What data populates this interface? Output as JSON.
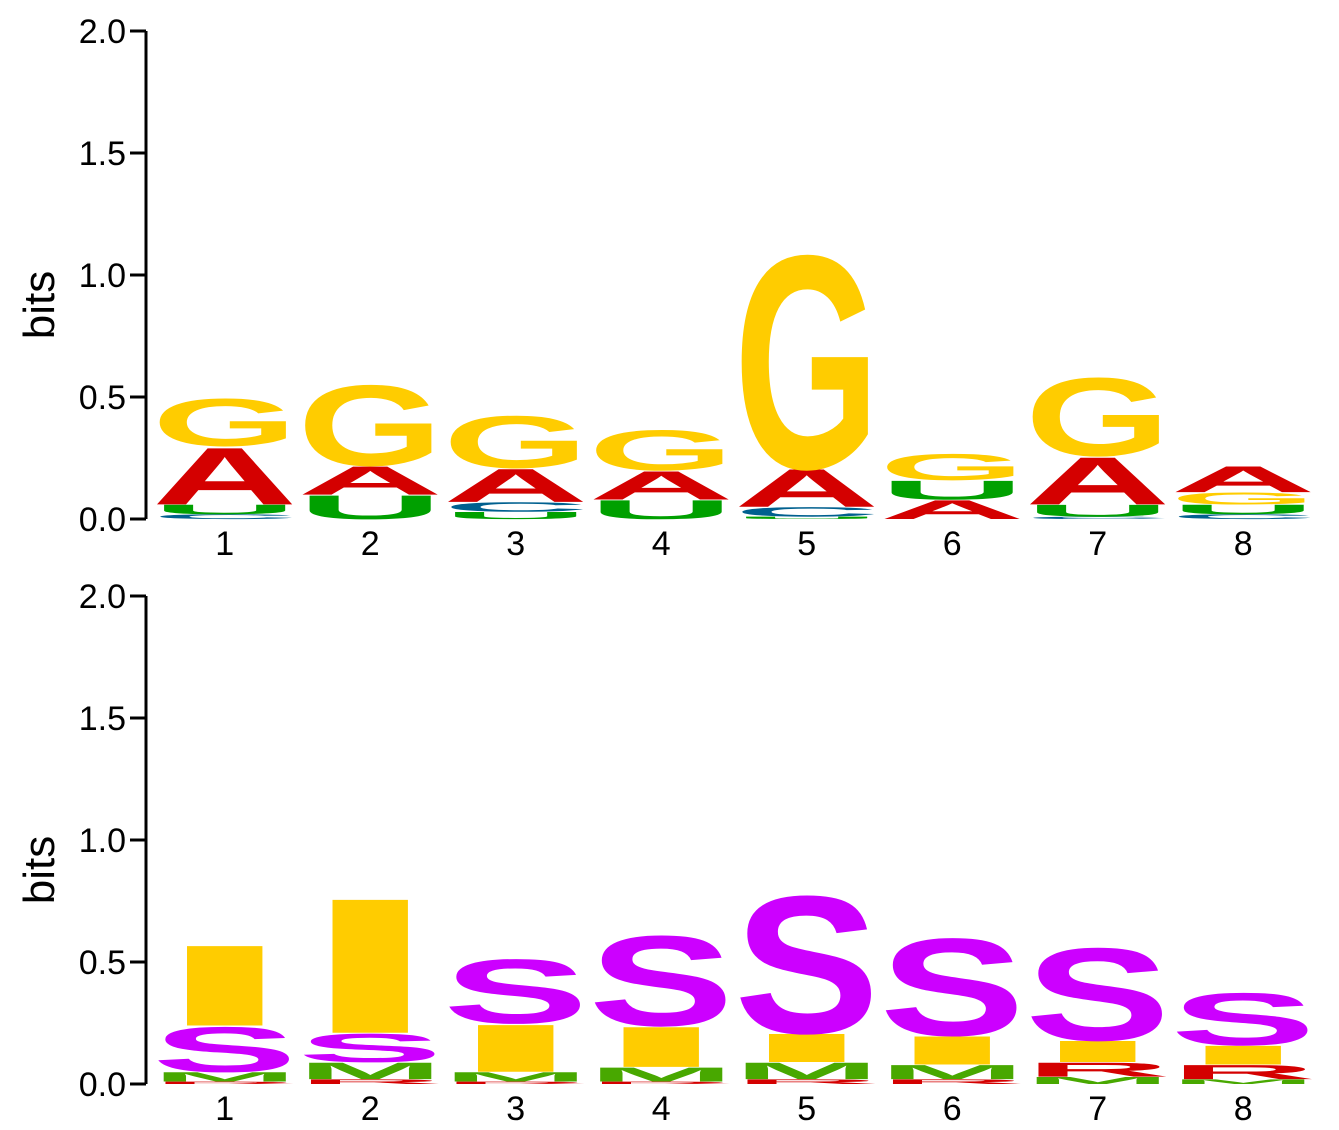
{
  "colors": {
    "A": "#d40000",
    "G": "#ffcc00",
    "U": "#00a000",
    "C": "#00608f",
    "S": "#cc00ff",
    "I": "#ffcc00",
    "M": "#48a800",
    "R": "#d40000"
  },
  "chart_data": [
    {
      "type": "sequence-logo",
      "ylabel": "bits",
      "ylim": [
        0,
        2.0
      ],
      "yticks": [
        "0.0",
        "0.5",
        "1.0",
        "1.5",
        "2.0"
      ],
      "positions": [
        "1",
        "2",
        "3",
        "4",
        "5",
        "6",
        "7",
        "8"
      ],
      "stacks": [
        [
          {
            "l": "C",
            "v": 0.02
          },
          {
            "l": "U",
            "v": 0.04
          },
          {
            "l": "A",
            "v": 0.24
          },
          {
            "l": "G",
            "v": 0.2
          }
        ],
        [
          {
            "l": "U",
            "v": 0.1
          },
          {
            "l": "A",
            "v": 0.12
          },
          {
            "l": "G",
            "v": 0.34
          }
        ],
        [
          {
            "l": "U",
            "v": 0.03
          },
          {
            "l": "C",
            "v": 0.04
          },
          {
            "l": "A",
            "v": 0.14
          },
          {
            "l": "G",
            "v": 0.22
          }
        ],
        [
          {
            "l": "U",
            "v": 0.08
          },
          {
            "l": "A",
            "v": 0.12
          },
          {
            "l": "G",
            "v": 0.17
          }
        ],
        [
          {
            "l": "U",
            "v": 0.01
          },
          {
            "l": "C",
            "v": 0.04
          },
          {
            "l": "A",
            "v": 0.16
          },
          {
            "l": "G",
            "v": 0.9
          }
        ],
        [
          {
            "l": "A",
            "v": 0.08
          },
          {
            "l": "U",
            "v": 0.08
          },
          {
            "l": "G",
            "v": 0.11
          }
        ],
        [
          {
            "l": "C",
            "v": 0.01
          },
          {
            "l": "U",
            "v": 0.05
          },
          {
            "l": "A",
            "v": 0.2
          },
          {
            "l": "G",
            "v": 0.33
          }
        ],
        [
          {
            "l": "C",
            "v": 0.02
          },
          {
            "l": "U",
            "v": 0.04
          },
          {
            "l": "G",
            "v": 0.05
          },
          {
            "l": "A",
            "v": 0.11
          }
        ]
      ]
    },
    {
      "type": "sequence-logo",
      "ylabel": "bits",
      "ylim": [
        0,
        2.0
      ],
      "yticks": [
        "0.0",
        "0.5",
        "1.0",
        "1.5",
        "2.0"
      ],
      "positions": [
        "1",
        "2",
        "3",
        "4",
        "5",
        "6",
        "7",
        "8"
      ],
      "stacks": [
        [
          {
            "l": "R",
            "v": 0.01
          },
          {
            "l": "M",
            "v": 0.04
          },
          {
            "l": "S",
            "v": 0.19
          },
          {
            "l": "I",
            "v": 0.34
          }
        ],
        [
          {
            "l": "R",
            "v": 0.02
          },
          {
            "l": "M",
            "v": 0.07
          },
          {
            "l": "S",
            "v": 0.12
          },
          {
            "l": "I",
            "v": 0.57
          }
        ],
        [
          {
            "l": "R",
            "v": 0.01
          },
          {
            "l": "M",
            "v": 0.04
          },
          {
            "l": "I",
            "v": 0.2
          },
          {
            "l": "S",
            "v": 0.27
          }
        ],
        [
          {
            "l": "R",
            "v": 0.01
          },
          {
            "l": "M",
            "v": 0.06
          },
          {
            "l": "I",
            "v": 0.17
          },
          {
            "l": "S",
            "v": 0.38
          }
        ],
        [
          {
            "l": "R",
            "v": 0.02
          },
          {
            "l": "M",
            "v": 0.07
          },
          {
            "l": "I",
            "v": 0.12
          },
          {
            "l": "S",
            "v": 0.58
          }
        ],
        [
          {
            "l": "R",
            "v": 0.02
          },
          {
            "l": "M",
            "v": 0.06
          },
          {
            "l": "I",
            "v": 0.12
          },
          {
            "l": "S",
            "v": 0.41
          }
        ],
        [
          {
            "l": "M",
            "v": 0.03
          },
          {
            "l": "R",
            "v": 0.06
          },
          {
            "l": "I",
            "v": 0.09
          },
          {
            "l": "S",
            "v": 0.39
          }
        ],
        [
          {
            "l": "M",
            "v": 0.02
          },
          {
            "l": "R",
            "v": 0.06
          },
          {
            "l": "I",
            "v": 0.08
          },
          {
            "l": "S",
            "v": 0.22
          }
        ]
      ]
    }
  ]
}
